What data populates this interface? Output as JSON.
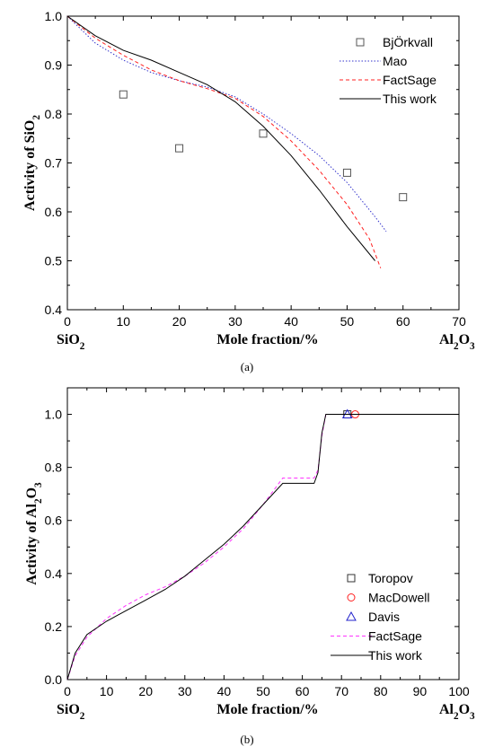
{
  "chart_data": [
    {
      "type": "line",
      "panel_label": "(a)",
      "xlabel": "Mole fraction/%",
      "ylabel_parts": [
        "Activity of SiO",
        "2"
      ],
      "left_end_label_parts": [
        "SiO",
        "2"
      ],
      "right_end_label_parts": [
        "Al",
        "2",
        "O",
        "3"
      ],
      "xlim": [
        0,
        70
      ],
      "ylim": [
        0.4,
        1.0
      ],
      "xticks": [
        0,
        10,
        20,
        30,
        40,
        50,
        60,
        70
      ],
      "yticks": [
        0.4,
        0.5,
        0.6,
        0.7,
        0.8,
        0.9,
        1.0
      ],
      "xtick_labels": [
        "0",
        "10",
        "20",
        "30",
        "40",
        "50",
        "60",
        "70"
      ],
      "ytick_labels": [
        "0.4",
        "0.5",
        "0.6",
        "0.7",
        "0.8",
        "0.9",
        "1.0"
      ],
      "legend_position": "top-right",
      "grid": false,
      "series": [
        {
          "name": "BjÖrkvall",
          "kind": "scatter",
          "marker": "square",
          "color": "#555555",
          "x": [
            10,
            20,
            35,
            50,
            60
          ],
          "y": [
            0.84,
            0.73,
            0.76,
            0.68,
            0.63
          ]
        },
        {
          "name": "Mao",
          "kind": "line",
          "style": "dotted",
          "color": "#3333cc",
          "x": [
            0,
            5,
            10,
            15,
            20,
            25,
            30,
            35,
            40,
            45,
            50,
            55,
            57
          ],
          "y": [
            1.0,
            0.945,
            0.91,
            0.885,
            0.868,
            0.855,
            0.835,
            0.8,
            0.76,
            0.715,
            0.66,
            0.59,
            0.56
          ]
        },
        {
          "name": "FactSage",
          "kind": "line",
          "style": "dashed",
          "color": "#ff2020",
          "x": [
            0,
            5,
            10,
            15,
            20,
            25,
            30,
            35,
            40,
            45,
            50,
            54,
            56
          ],
          "y": [
            1.0,
            0.955,
            0.92,
            0.89,
            0.868,
            0.852,
            0.832,
            0.795,
            0.745,
            0.685,
            0.615,
            0.545,
            0.485
          ]
        },
        {
          "name": "This work",
          "kind": "line",
          "style": "solid",
          "color": "#000000",
          "x": [
            0,
            5,
            10,
            15,
            20,
            25,
            30,
            35,
            40,
            45,
            50,
            55
          ],
          "y": [
            1.0,
            0.96,
            0.93,
            0.91,
            0.885,
            0.86,
            0.825,
            0.775,
            0.715,
            0.645,
            0.57,
            0.5
          ]
        }
      ]
    },
    {
      "type": "line",
      "panel_label": "(b)",
      "xlabel": "Mole fraction/%",
      "ylabel_parts": [
        "Activity of Al",
        "2",
        "O",
        "3"
      ],
      "left_end_label_parts": [
        "SiO",
        "2"
      ],
      "right_end_label_parts": [
        "Al",
        "2",
        "O",
        "3"
      ],
      "xlim": [
        0,
        100
      ],
      "ylim": [
        0.0,
        1.1
      ],
      "xticks": [
        0,
        10,
        20,
        30,
        40,
        50,
        60,
        70,
        80,
        90,
        100
      ],
      "yticks": [
        0.0,
        0.2,
        0.4,
        0.6,
        0.8,
        1.0
      ],
      "xtick_labels": [
        "0",
        "10",
        "20",
        "30",
        "40",
        "50",
        "60",
        "70",
        "80",
        "90",
        "100"
      ],
      "ytick_labels": [
        "0.0",
        "0.2",
        "0.4",
        "0.6",
        "0.8",
        "1.0"
      ],
      "legend_position": "bottom-right",
      "grid": false,
      "series": [
        {
          "name": "Toropov",
          "kind": "scatter",
          "marker": "square",
          "color": "#333333",
          "x": [
            71.5
          ],
          "y": [
            1.0
          ]
        },
        {
          "name": "MacDowell",
          "kind": "scatter",
          "marker": "circle",
          "color": "#ff2020",
          "x": [
            73.5
          ],
          "y": [
            1.0
          ]
        },
        {
          "name": "Davis",
          "kind": "scatter",
          "marker": "triangle",
          "color": "#2222cc",
          "x": [
            71.5
          ],
          "y": [
            1.0
          ]
        },
        {
          "name": "FactSage",
          "kind": "line",
          "style": "dashed",
          "color": "#ff33ff",
          "x": [
            0,
            2,
            5,
            10,
            15,
            20,
            25,
            30,
            35,
            40,
            45,
            50,
            55,
            63,
            64,
            65,
            66,
            100
          ],
          "y": [
            0.0,
            0.09,
            0.16,
            0.23,
            0.28,
            0.32,
            0.35,
            0.39,
            0.44,
            0.5,
            0.57,
            0.66,
            0.76,
            0.76,
            0.79,
            0.92,
            1.0,
            1.0
          ]
        },
        {
          "name": "This work",
          "kind": "line",
          "style": "solid",
          "color": "#000000",
          "x": [
            0,
            2,
            5,
            10,
            15,
            20,
            25,
            30,
            35,
            40,
            45,
            50,
            55,
            63,
            64,
            65,
            66,
            100
          ],
          "y": [
            0.0,
            0.1,
            0.17,
            0.22,
            0.26,
            0.3,
            0.34,
            0.39,
            0.45,
            0.51,
            0.58,
            0.66,
            0.74,
            0.74,
            0.78,
            0.93,
            1.0,
            1.0
          ]
        }
      ]
    }
  ]
}
